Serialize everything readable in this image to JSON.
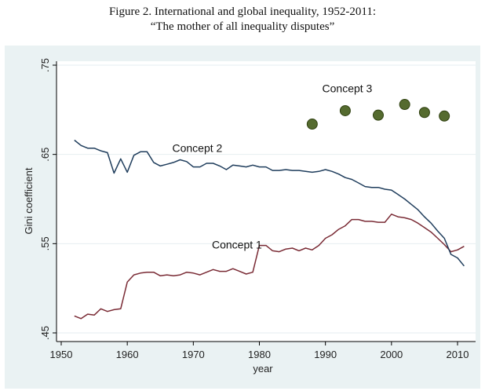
{
  "chart_data": {
    "type": "line",
    "title": "Figure 2. International and global inequality, 1952-2011:",
    "subtitle": "“The mother of all inequality disputes”",
    "xlabel": "year",
    "ylabel": "Gini coefficient",
    "xlim": [
      1950,
      2010
    ],
    "ylim": [
      0.45,
      0.75
    ],
    "x_ticks": [
      1950,
      1960,
      1970,
      1980,
      1990,
      2000,
      2010
    ],
    "x_tick_labels": [
      "1950",
      "1960",
      "1970",
      "1980",
      "1990",
      "2000",
      "2010"
    ],
    "y_ticks": [
      0.45,
      0.55,
      0.65,
      0.75
    ],
    "y_tick_labels": [
      ".45",
      ".55",
      ".65",
      ".75"
    ],
    "grid": true,
    "colors": {
      "plot_background": "#ffffff",
      "outer_background": "#eaf2f3",
      "grid": "#e6eef0",
      "concept1": "#7a2b35",
      "concept2": "#1f3d5c",
      "concept3": "#556b2f",
      "concept3_edge": "#2f4010"
    },
    "series": [
      {
        "name": "Concept 1",
        "kind": "line",
        "x": [
          1952,
          1953,
          1954,
          1955,
          1956,
          1957,
          1958,
          1959,
          1960,
          1961,
          1962,
          1963,
          1964,
          1965,
          1966,
          1967,
          1968,
          1969,
          1970,
          1971,
          1972,
          1973,
          1974,
          1975,
          1976,
          1977,
          1978,
          1979,
          1980,
          1981,
          1982,
          1983,
          1984,
          1985,
          1986,
          1987,
          1988,
          1989,
          1990,
          1991,
          1992,
          1993,
          1994,
          1995,
          1996,
          1997,
          1998,
          1999,
          2000,
          2001,
          2002,
          2003,
          2004,
          2005,
          2006,
          2007,
          2008,
          2009,
          2010,
          2011
        ],
        "values": [
          0.469,
          0.466,
          0.471,
          0.47,
          0.477,
          0.474,
          0.476,
          0.477,
          0.507,
          0.515,
          0.517,
          0.518,
          0.518,
          0.514,
          0.515,
          0.514,
          0.515,
          0.518,
          0.517,
          0.515,
          0.518,
          0.521,
          0.519,
          0.519,
          0.522,
          0.519,
          0.516,
          0.518,
          0.548,
          0.548,
          0.542,
          0.541,
          0.544,
          0.545,
          0.542,
          0.545,
          0.543,
          0.548,
          0.556,
          0.56,
          0.566,
          0.57,
          0.577,
          0.577,
          0.575,
          0.575,
          0.574,
          0.574,
          0.583,
          0.58,
          0.579,
          0.577,
          0.573,
          0.568,
          0.563,
          0.556,
          0.549,
          0.541,
          0.543,
          0.547
        ]
      },
      {
        "name": "Concept 2",
        "kind": "line",
        "x": [
          1952,
          1953,
          1954,
          1955,
          1956,
          1957,
          1958,
          1959,
          1960,
          1961,
          1962,
          1963,
          1964,
          1965,
          1966,
          1967,
          1968,
          1969,
          1970,
          1971,
          1972,
          1973,
          1974,
          1975,
          1976,
          1977,
          1978,
          1979,
          1980,
          1981,
          1982,
          1983,
          1984,
          1985,
          1986,
          1987,
          1988,
          1989,
          1990,
          1991,
          1992,
          1993,
          1994,
          1995,
          1996,
          1997,
          1998,
          1999,
          2000,
          2001,
          2002,
          2003,
          2004,
          2005,
          2006,
          2007,
          2008,
          2009,
          2010,
          2011
        ],
        "values": [
          0.666,
          0.66,
          0.657,
          0.657,
          0.654,
          0.652,
          0.629,
          0.645,
          0.63,
          0.649,
          0.653,
          0.653,
          0.641,
          0.637,
          0.639,
          0.641,
          0.644,
          0.642,
          0.636,
          0.636,
          0.64,
          0.64,
          0.637,
          0.633,
          0.638,
          0.637,
          0.636,
          0.638,
          0.636,
          0.636,
          0.632,
          0.632,
          0.633,
          0.632,
          0.632,
          0.631,
          0.63,
          0.631,
          0.633,
          0.631,
          0.628,
          0.624,
          0.622,
          0.618,
          0.614,
          0.613,
          0.613,
          0.611,
          0.61,
          0.605,
          0.6,
          0.594,
          0.588,
          0.58,
          0.573,
          0.564,
          0.556,
          0.538,
          0.534,
          0.525
        ]
      },
      {
        "name": "Concept 3",
        "kind": "scatter",
        "x": [
          1988,
          1993,
          1998,
          2002,
          2005,
          2008
        ],
        "values": [
          0.684,
          0.699,
          0.694,
          0.706,
          0.697,
          0.693
        ]
      }
    ],
    "annotations": [
      {
        "text": "Concept 1",
        "x": 1976.6,
        "y": 0.549
      },
      {
        "text": "Concept 2",
        "x": 1970.6,
        "y": 0.657
      },
      {
        "text": "Concept 3",
        "x": 1993.3,
        "y": 0.724
      }
    ]
  }
}
